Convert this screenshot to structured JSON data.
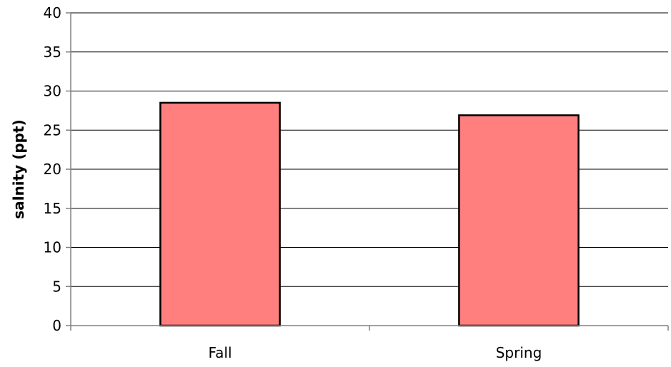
{
  "chart_data": {
    "type": "bar",
    "categories": [
      "Fall",
      "Spring"
    ],
    "values": [
      28.5,
      26.9
    ],
    "xlabel": "",
    "ylabel": "salnity (ppt)",
    "ylim": [
      0,
      40
    ],
    "yticks": [
      0,
      5,
      10,
      15,
      20,
      25,
      30,
      35,
      40
    ],
    "grid": true,
    "legend": "none",
    "colors": {
      "bar_fill": "#ff7f7f",
      "bar_stroke": "#000000",
      "grid": "#000000",
      "axis": "#808080"
    }
  }
}
